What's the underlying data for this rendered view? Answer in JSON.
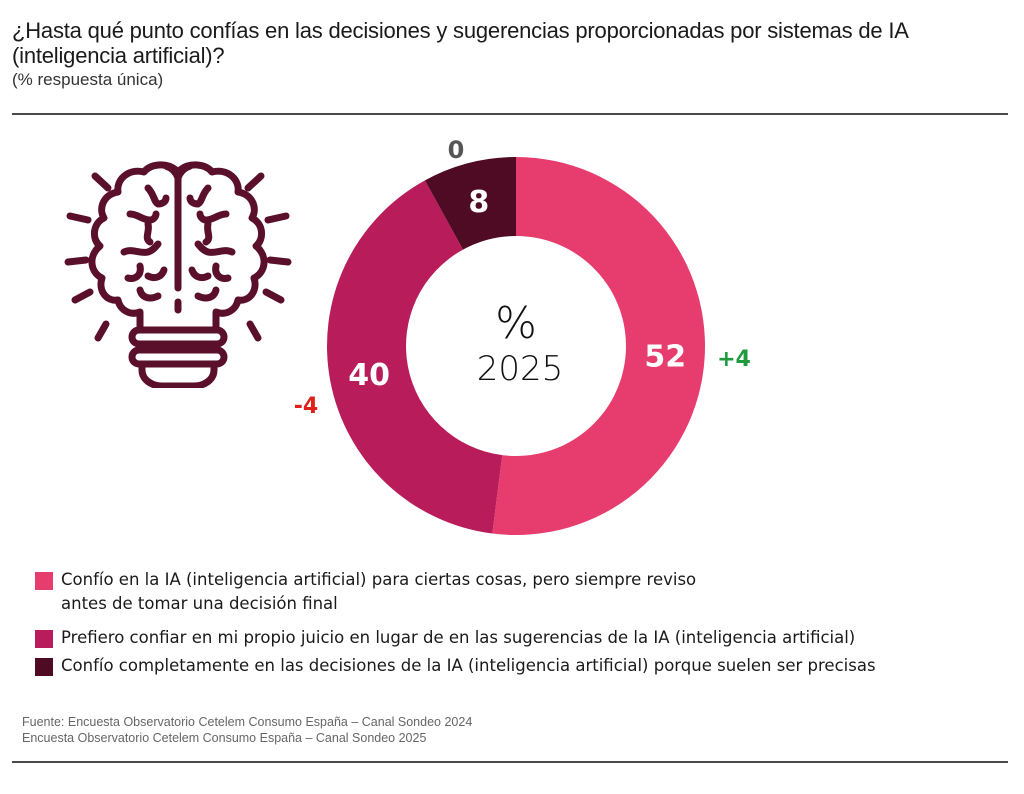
{
  "header": {
    "title": "¿Hasta qué punto confías en las decisiones y sugerencias proporcionadas por sistemas de IA (inteligencia artificial)?",
    "subtitle": "(% respuesta única)"
  },
  "icon": {
    "name": "brain-lightbulb-icon",
    "color": "#5a0f2a"
  },
  "chart_data": {
    "type": "pie",
    "subtype": "donut",
    "title": "¿Hasta qué punto confías en las decisiones y sugerencias proporcionadas por sistemas de IA (inteligencia artificial)?",
    "center_label": {
      "symbol": "%",
      "year": "2025"
    },
    "unit": "%",
    "start": "top",
    "direction": "clockwise",
    "categories": [
      "Confío en la IA (inteligencia artificial) para ciertas cosas, pero siempre reviso antes de tomar una decisión final",
      "Prefiero confiar en mi propio juicio en lugar de en las sugerencias de la IA (inteligencia artificial)",
      "Confío completamente en las decisiones de la IA (inteligencia artificial) porque suelen ser precisas"
    ],
    "values": [
      52,
      40,
      8
    ],
    "labels": [
      "52",
      "40",
      "8"
    ],
    "colors": [
      "#e63c6e",
      "#b81c5a",
      "#4f0a24"
    ],
    "changes_vs_2024": [
      "+4",
      "-4",
      "0"
    ],
    "change_colors": [
      "#1f9a3c",
      "#e0201b",
      "#555555"
    ],
    "legend_position": "bottom"
  },
  "legend": {
    "items": [
      {
        "lines": [
          "Confío en la IA (inteligencia artificial) para ciertas cosas, pero siempre reviso",
          "antes de tomar una decisión final"
        ],
        "color": "#e63c6e"
      },
      {
        "lines": [
          "Prefiero confiar en mi propio juicio en lugar de en las sugerencias de la IA (inteligencia artificial)"
        ],
        "color": "#b81c5a"
      },
      {
        "lines": [
          "Confío completamente en las decisiones de la IA (inteligencia artificial) porque suelen ser precisas"
        ],
        "color": "#4f0a24"
      }
    ]
  },
  "source": {
    "line1": "Fuente: Encuesta Observatorio Cetelem Consumo España – Canal Sondeo 2024",
    "line2": "Encuesta Observatorio Cetelem Consumo España – Canal Sondeo 2025"
  }
}
